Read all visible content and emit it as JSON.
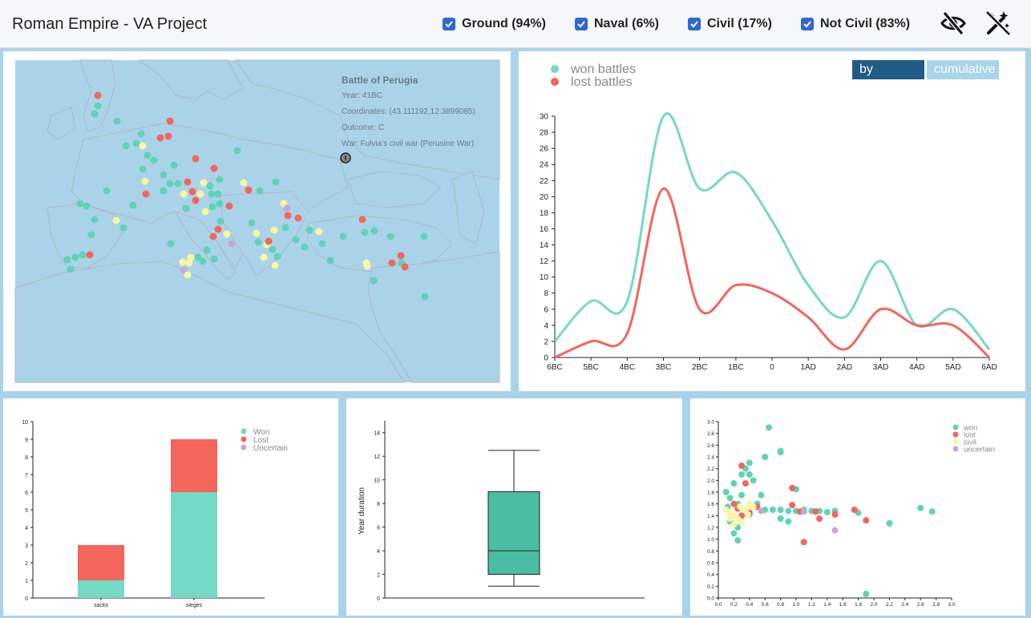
{
  "header": {
    "title": "Roman Empire - VA Project",
    "filters": [
      {
        "label": "Ground (94%)",
        "checked": true
      },
      {
        "label": "Naval (6%)",
        "checked": true
      },
      {
        "label": "Civil (17%)",
        "checked": true
      },
      {
        "label": "Not Civil (83%)",
        "checked": true
      }
    ],
    "icons": [
      "eye-slash-icon",
      "magic-wand-off-icon"
    ]
  },
  "map": {
    "tooltip": {
      "title": "Battle of Perugia",
      "year": "Year: 41BC",
      "coordinates": "Coordinates: (43.111192,12.3899085)",
      "outcome": "Outcome: C",
      "war": "War: Fulvia's civil war (Perusine War)"
    },
    "colors": {
      "won": "#5fd3b5",
      "lost": "#f4655c",
      "civil": "#f8f6a0",
      "uncertain": "#c6a6d8",
      "water": "#aad3ea",
      "land": "#ffffff"
    }
  },
  "line_chart": {
    "legend": {
      "won": "won battles",
      "lost": "lost battles"
    },
    "tabs": {
      "active": "by century",
      "inactive": "cumulative"
    },
    "chart_data": {
      "type": "line",
      "categories": [
        "6BC",
        "5BC",
        "4BC",
        "3BC",
        "2BC",
        "1BC",
        "0",
        "1AD",
        "2AD",
        "3AD",
        "4AD",
        "5AD",
        "6AD"
      ],
      "series": [
        {
          "name": "won battles",
          "color": "#74d9c5",
          "values": [
            2,
            7,
            7,
            30,
            21,
            23,
            17,
            9,
            5,
            12,
            4,
            6,
            1
          ]
        },
        {
          "name": "lost battles",
          "color": "#f4655c",
          "values": [
            0,
            2,
            3,
            21,
            6,
            9,
            8,
            5,
            1,
            6,
            4,
            4,
            0
          ]
        }
      ],
      "ylim": [
        0,
        30
      ],
      "yticks": [
        0,
        2,
        4,
        6,
        8,
        10,
        12,
        14,
        16,
        18,
        20,
        22,
        24,
        26,
        28,
        30
      ]
    }
  },
  "bar_chart": {
    "legend": [
      "Won",
      "Lost",
      "Uncertain"
    ],
    "chart_data": {
      "type": "bar",
      "categories": [
        "sacks",
        "sieges"
      ],
      "series": [
        {
          "name": "Won",
          "color": "#74d9c5",
          "values": [
            1,
            6
          ]
        },
        {
          "name": "Lost",
          "color": "#f4655c",
          "values": [
            2,
            3
          ]
        },
        {
          "name": "Uncertain",
          "color": "#c6a6d8",
          "values": [
            0,
            0
          ]
        }
      ],
      "ylim": [
        0,
        10
      ],
      "yticks": [
        0,
        1,
        2,
        3,
        4,
        5,
        6,
        7,
        8,
        9,
        10
      ]
    }
  },
  "box_plot": {
    "ylabel": "Year duration",
    "chart_data": {
      "type": "box",
      "min": 1,
      "q1": 2,
      "median": 4,
      "q3": 9,
      "max": 12.5,
      "ylim": [
        0,
        15
      ],
      "yticks": [
        0,
        2,
        4,
        6,
        8,
        10,
        12,
        14
      ],
      "color": "#4bbda2"
    }
  },
  "scatter_plot": {
    "legend": [
      "won",
      "lost",
      "civil",
      "uncertain"
    ],
    "chart_data": {
      "type": "scatter",
      "xlim": [
        0,
        3.0
      ],
      "ylim": [
        0,
        3.0
      ],
      "xticks": [
        0,
        0.2,
        0.4,
        0.6,
        0.8,
        1.0,
        1.2,
        1.4,
        1.6,
        1.8,
        2.0,
        2.2,
        2.4,
        2.6,
        2.8,
        3.0
      ],
      "yticks": [
        0,
        0.2,
        0.4,
        0.6,
        0.8,
        1.0,
        1.2,
        1.4,
        1.6,
        1.8,
        2.0,
        2.2,
        2.4,
        2.6,
        2.8,
        3.0
      ],
      "series": [
        {
          "name": "won",
          "color": "#5fd3b5",
          "points": [
            [
              0.65,
              2.9
            ],
            [
              0.8,
              2.5
            ],
            [
              0.8,
              2.48
            ],
            [
              0.6,
              2.4
            ],
            [
              0.4,
              2.3
            ],
            [
              0.35,
              2.2
            ],
            [
              0.4,
              2.1
            ],
            [
              0.3,
              2.1
            ],
            [
              0.45,
              2.0
            ],
            [
              0.2,
              1.95
            ],
            [
              0.55,
              1.75
            ],
            [
              0.1,
              1.8
            ],
            [
              0.3,
              1.75
            ],
            [
              0.15,
              1.7
            ],
            [
              0.25,
              1.6
            ],
            [
              0.5,
              1.6
            ],
            [
              0.6,
              1.5
            ],
            [
              0.7,
              1.5
            ],
            [
              0.8,
              1.5
            ],
            [
              0.9,
              1.48
            ],
            [
              1.0,
              1.48
            ],
            [
              1.1,
              1.5
            ],
            [
              1.2,
              1.48
            ],
            [
              1.3,
              1.48
            ],
            [
              1.5,
              1.48
            ],
            [
              1.8,
              1.45
            ],
            [
              0.3,
              1.4
            ],
            [
              0.4,
              1.42
            ],
            [
              0.15,
              1.3
            ],
            [
              0.25,
              1.2
            ],
            [
              0.2,
              1.1
            ],
            [
              0.25,
              0.98
            ],
            [
              0.8,
              1.35
            ],
            [
              0.9,
              1.3
            ],
            [
              2.6,
              1.53
            ],
            [
              2.75,
              1.47
            ],
            [
              2.2,
              1.27
            ],
            [
              1.9,
              0.07
            ],
            [
              0.12,
              1.55
            ],
            [
              0.35,
              1.5
            ],
            [
              1.4,
              1.46
            ],
            [
              1.0,
              1.85
            ]
          ]
        },
        {
          "name": "lost",
          "color": "#f4655c",
          "points": [
            [
              0.3,
              2.25
            ],
            [
              0.35,
              1.95
            ],
            [
              0.95,
              1.87
            ],
            [
              0.2,
              1.6
            ],
            [
              0.5,
              1.55
            ],
            [
              0.3,
              1.4
            ],
            [
              0.95,
              1.58
            ],
            [
              1.05,
              1.47
            ],
            [
              1.25,
              1.47
            ],
            [
              1.3,
              1.35
            ],
            [
              1.5,
              1.42
            ],
            [
              1.75,
              1.5
            ],
            [
              1.9,
              1.32
            ],
            [
              1.1,
              0.95
            ],
            [
              0.4,
              1.45
            ],
            [
              0.25,
              1.52
            ]
          ]
        },
        {
          "name": "civil",
          "color": "#f8f6a0",
          "points": [
            [
              0.1,
              1.5
            ],
            [
              0.15,
              1.45
            ],
            [
              0.2,
              1.4
            ],
            [
              0.25,
              1.35
            ],
            [
              0.3,
              1.3
            ],
            [
              0.35,
              1.5
            ],
            [
              0.4,
              1.6
            ],
            [
              0.45,
              1.55
            ],
            [
              0.2,
              1.25
            ],
            [
              0.15,
              1.35
            ],
            [
              0.28,
              1.55
            ],
            [
              0.38,
              1.42
            ]
          ]
        },
        {
          "name": "uncertain",
          "color": "#c6a6d8",
          "points": [
            [
              1.5,
              1.15
            ],
            [
              1.1,
              1.47
            ],
            [
              0.55,
              1.48
            ]
          ]
        }
      ]
    }
  }
}
